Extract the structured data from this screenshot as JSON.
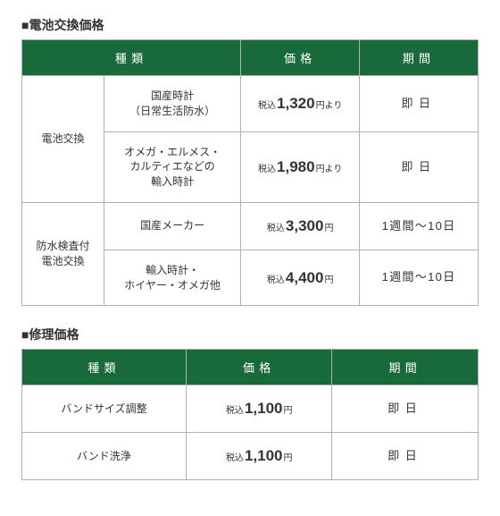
{
  "colors": {
    "header_bg": "#186a3b",
    "header_text": "#ffffff",
    "border": "#b0b0b0",
    "text": "#333333",
    "background": "#ffffff"
  },
  "table1": {
    "title": "■電池交換価格",
    "headers": {
      "type": "種類",
      "price": "価格",
      "duration": "期間"
    },
    "price_prefix": "税込",
    "price_suffix_from": "円より",
    "price_suffix": "円",
    "groups": [
      {
        "label": "電池交換",
        "rows": [
          {
            "type": "国産時計\n（日常生活防水）",
            "price": "1,320",
            "suffix_kind": "from",
            "duration": "即日",
            "spaced": true
          },
          {
            "type": "オメガ・エルメス・\nカルティエなどの\n輸入時計",
            "price": "1,980",
            "suffix_kind": "from",
            "duration": "即日",
            "spaced": true
          }
        ]
      },
      {
        "label": "防水検査付\n電池交換",
        "rows": [
          {
            "type": "国産メーカー",
            "price": "3,300",
            "suffix_kind": "plain",
            "duration": "1週間～10日",
            "spaced": false
          },
          {
            "type": "輸入時計・\nホイヤー・オメガ他",
            "price": "4,400",
            "suffix_kind": "plain",
            "duration": "1週間～10日",
            "spaced": false
          }
        ]
      }
    ]
  },
  "table2": {
    "title": "■修理価格",
    "headers": {
      "type": "種類",
      "price": "価格",
      "duration": "期間"
    },
    "price_prefix": "税込",
    "price_suffix": "円",
    "rows": [
      {
        "type": "バンドサイズ調整",
        "price": "1,100",
        "duration": "即日",
        "spaced": true
      },
      {
        "type": "バンド洗浄",
        "price": "1,100",
        "duration": "即日",
        "spaced": true
      }
    ]
  }
}
